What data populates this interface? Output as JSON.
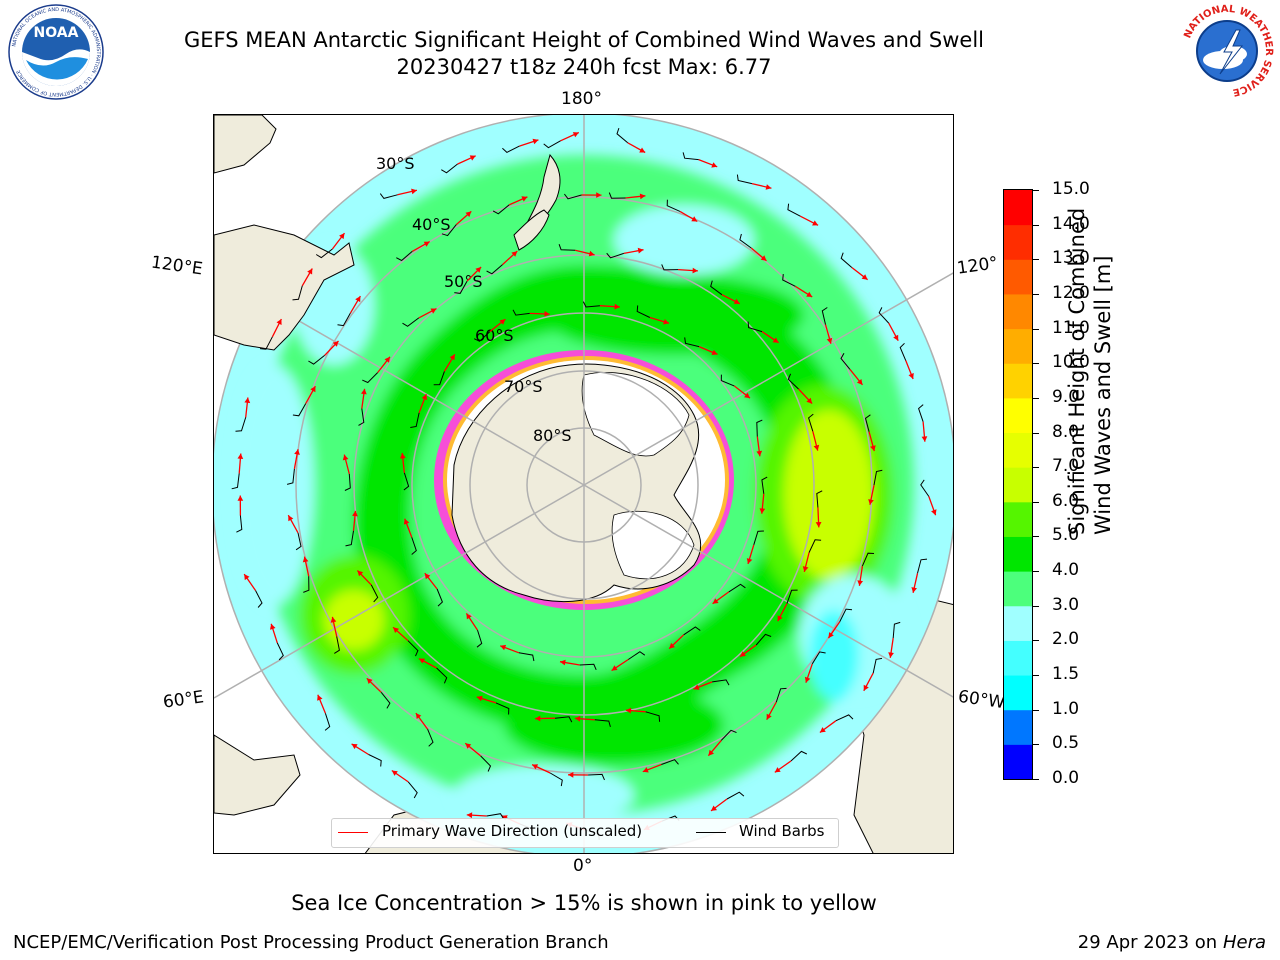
{
  "header": {
    "title_line1": "GEFS MEAN Antarctic Significant Height of Combined Wind Waves and Swell",
    "title_line2": "20230427 t18z 240h fcst   Max: 6.77"
  },
  "logos": {
    "left_name": "NOAA",
    "left_ring": "NATIONAL OCEANIC AND ATMOSPHERIC ADMINISTRATION · U.S. DEPARTMENT OF COMMERCE",
    "right_ring": "NATIONAL WEATHER SERVICE"
  },
  "map": {
    "lon_labels": {
      "top": "180°",
      "bottom": "0°",
      "left_upper": "120°E",
      "left_lower": "60°E",
      "right_upper": "120°",
      "right_lower": "60°W"
    },
    "lat_labels": [
      "30°S",
      "40°S",
      "50°S",
      "60°S",
      "70°S",
      "80°S"
    ]
  },
  "colorbar": {
    "label_line1": "Significant Height of Combined",
    "label_line2": "Wind Waves and Swell [m]",
    "ticks": [
      "0.0",
      "0.5",
      "1.0",
      "1.5",
      "2.0",
      "3.0",
      "4.0",
      "5.0",
      "6.0",
      "7.0",
      "8.0",
      "9.0",
      "10.0",
      "11.0",
      "12.0",
      "13.0",
      "14.0",
      "15.0"
    ],
    "colors": [
      "#0000ff",
      "#0077ff",
      "#00ffff",
      "#44ffff",
      "#a0ffff",
      "#4cff7c",
      "#00e600",
      "#55f500",
      "#c8ff00",
      "#e6ff00",
      "#ffff00",
      "#ffd200",
      "#ffad00",
      "#ff8800",
      "#ff5a00",
      "#ff2d00",
      "#ff0000"
    ]
  },
  "legend": {
    "wave_label": "Primary Wave Direction (unscaled)",
    "barb_label": "Wind Barbs",
    "wave_color": "#ff0000",
    "barb_color": "#000000"
  },
  "caption": "Sea Ice Concentration > 15% is shown in pink to yellow",
  "footer": {
    "left": "NCEP/EMC/Verification Post Processing Product Generation Branch",
    "date": "29 Apr 2023 on",
    "host": "Hera"
  }
}
